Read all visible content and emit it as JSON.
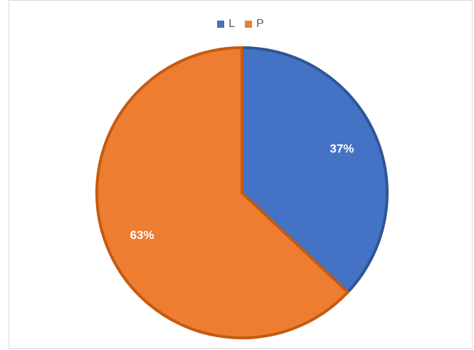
{
  "chart_data": {
    "type": "pie",
    "categories": [
      "L",
      "P"
    ],
    "values": [
      37,
      63
    ],
    "data_labels": [
      "37%",
      "63%"
    ],
    "colors": [
      "#4472C4",
      "#ED7D31"
    ],
    "border_colors": [
      "#2F5597",
      "#C55A11"
    ],
    "legend": {
      "position": "top",
      "entries": [
        "L",
        "P"
      ]
    },
    "start_angle_deg": 0,
    "direction": "clockwise"
  }
}
